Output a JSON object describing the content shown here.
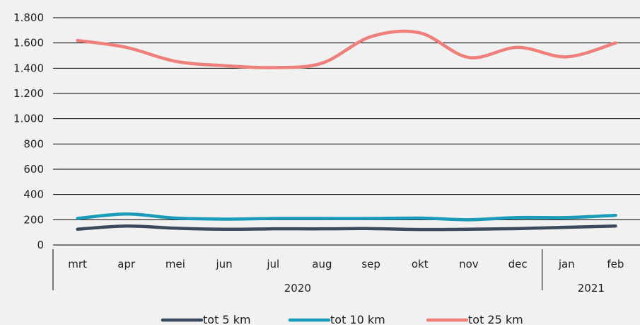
{
  "chart_data": {
    "type": "line",
    "title": "",
    "xlabel": "",
    "ylabel": "",
    "categories": [
      "mrt",
      "apr",
      "mei",
      "jun",
      "jul",
      "aug",
      "sep",
      "okt",
      "nov",
      "dec",
      "jan",
      "feb"
    ],
    "year_groups": [
      {
        "label": "2020",
        "from": 0,
        "to": 9
      },
      {
        "label": "2021",
        "from": 10,
        "to": 11
      }
    ],
    "ylim": [
      0,
      1800
    ],
    "yticks": [
      0,
      200,
      400,
      600,
      800,
      1000,
      1200,
      1400,
      1600,
      1800
    ],
    "ytick_labels": [
      "0",
      "200",
      "400",
      "600",
      "800",
      "1.000",
      "1.200",
      "1.400",
      "1.600",
      "1.800"
    ],
    "grid": true,
    "legend_position": "bottom",
    "series": [
      {
        "name": "tot 5 km",
        "color": "#3a4a5c",
        "values": [
          125,
          150,
          133,
          125,
          128,
          128,
          130,
          123,
          125,
          130,
          140,
          150
        ]
      },
      {
        "name": "tot 10 km",
        "color": "#1a9bb8",
        "values": [
          210,
          245,
          213,
          205,
          210,
          210,
          210,
          213,
          200,
          217,
          217,
          235
        ]
      },
      {
        "name": "tot 25 km",
        "color": "#ee7f7b",
        "values": [
          1620,
          1565,
          1455,
          1420,
          1405,
          1440,
          1650,
          1680,
          1485,
          1565,
          1490,
          1600
        ]
      }
    ]
  }
}
